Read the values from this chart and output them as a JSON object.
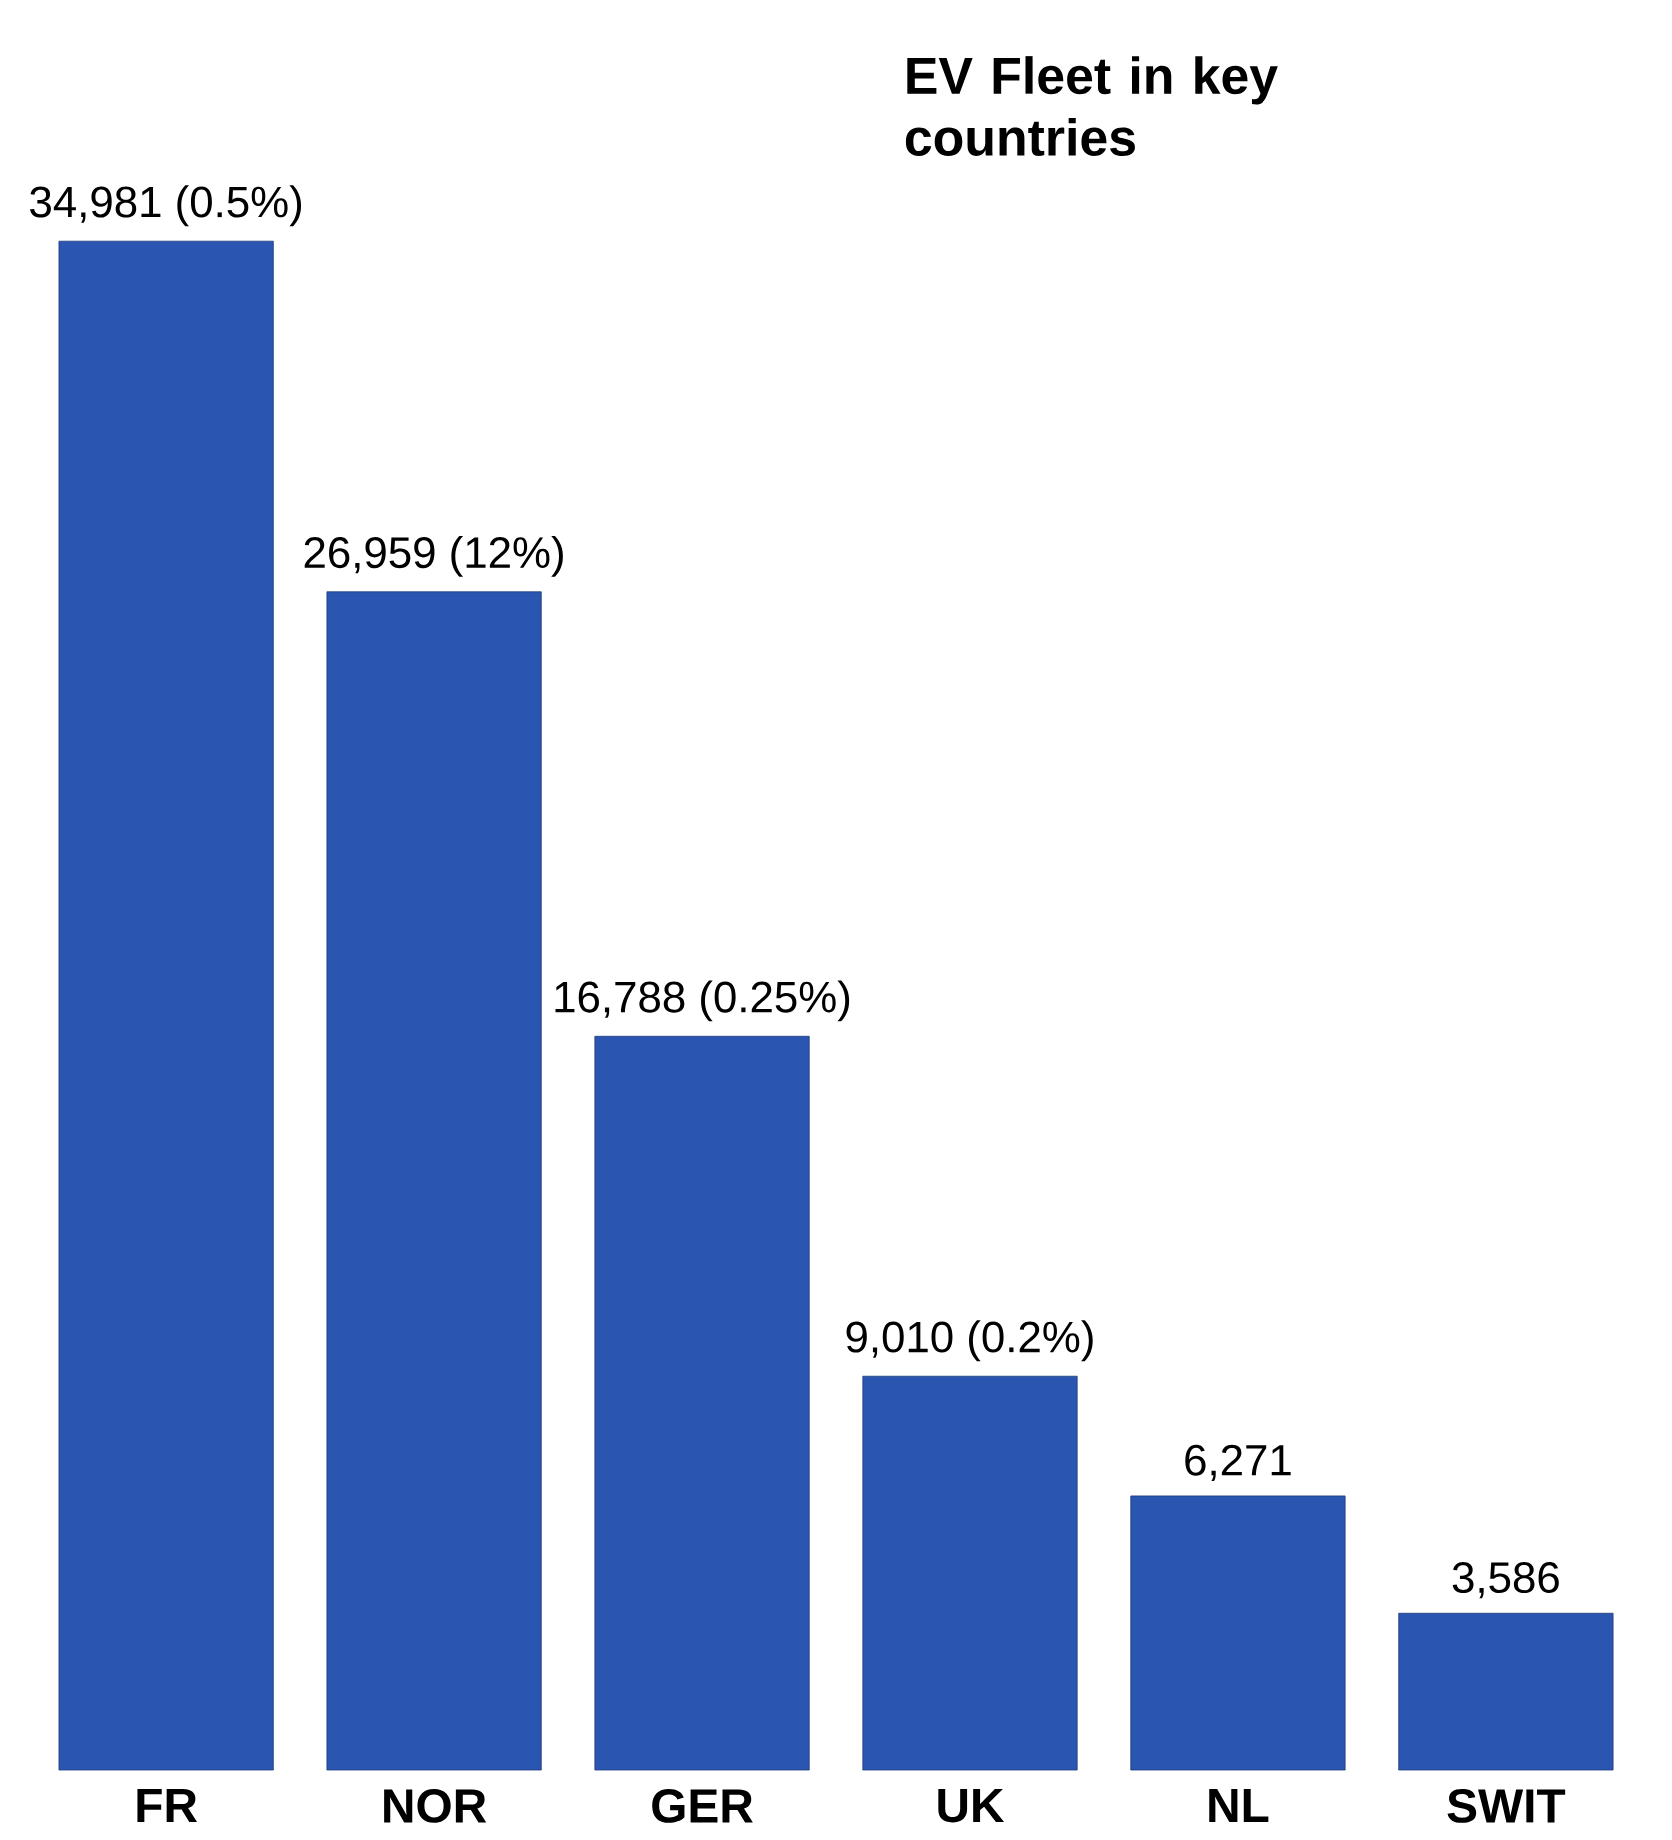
{
  "chart_data": {
    "type": "bar",
    "title": "EV Fleet in key countries",
    "categories": [
      "FR",
      "NOR",
      "GER",
      "UK",
      "NL",
      "SWIT"
    ],
    "values": [
      34981,
      26959,
      16788,
      9010,
      6271,
      3586
    ],
    "value_labels": [
      "34,981 (0.5%)",
      "26,959 (12%)",
      "16,788 (0.25%)",
      "9,010 (0.2%)",
      "6,271",
      "3,586"
    ],
    "color": "#2a55b0"
  }
}
